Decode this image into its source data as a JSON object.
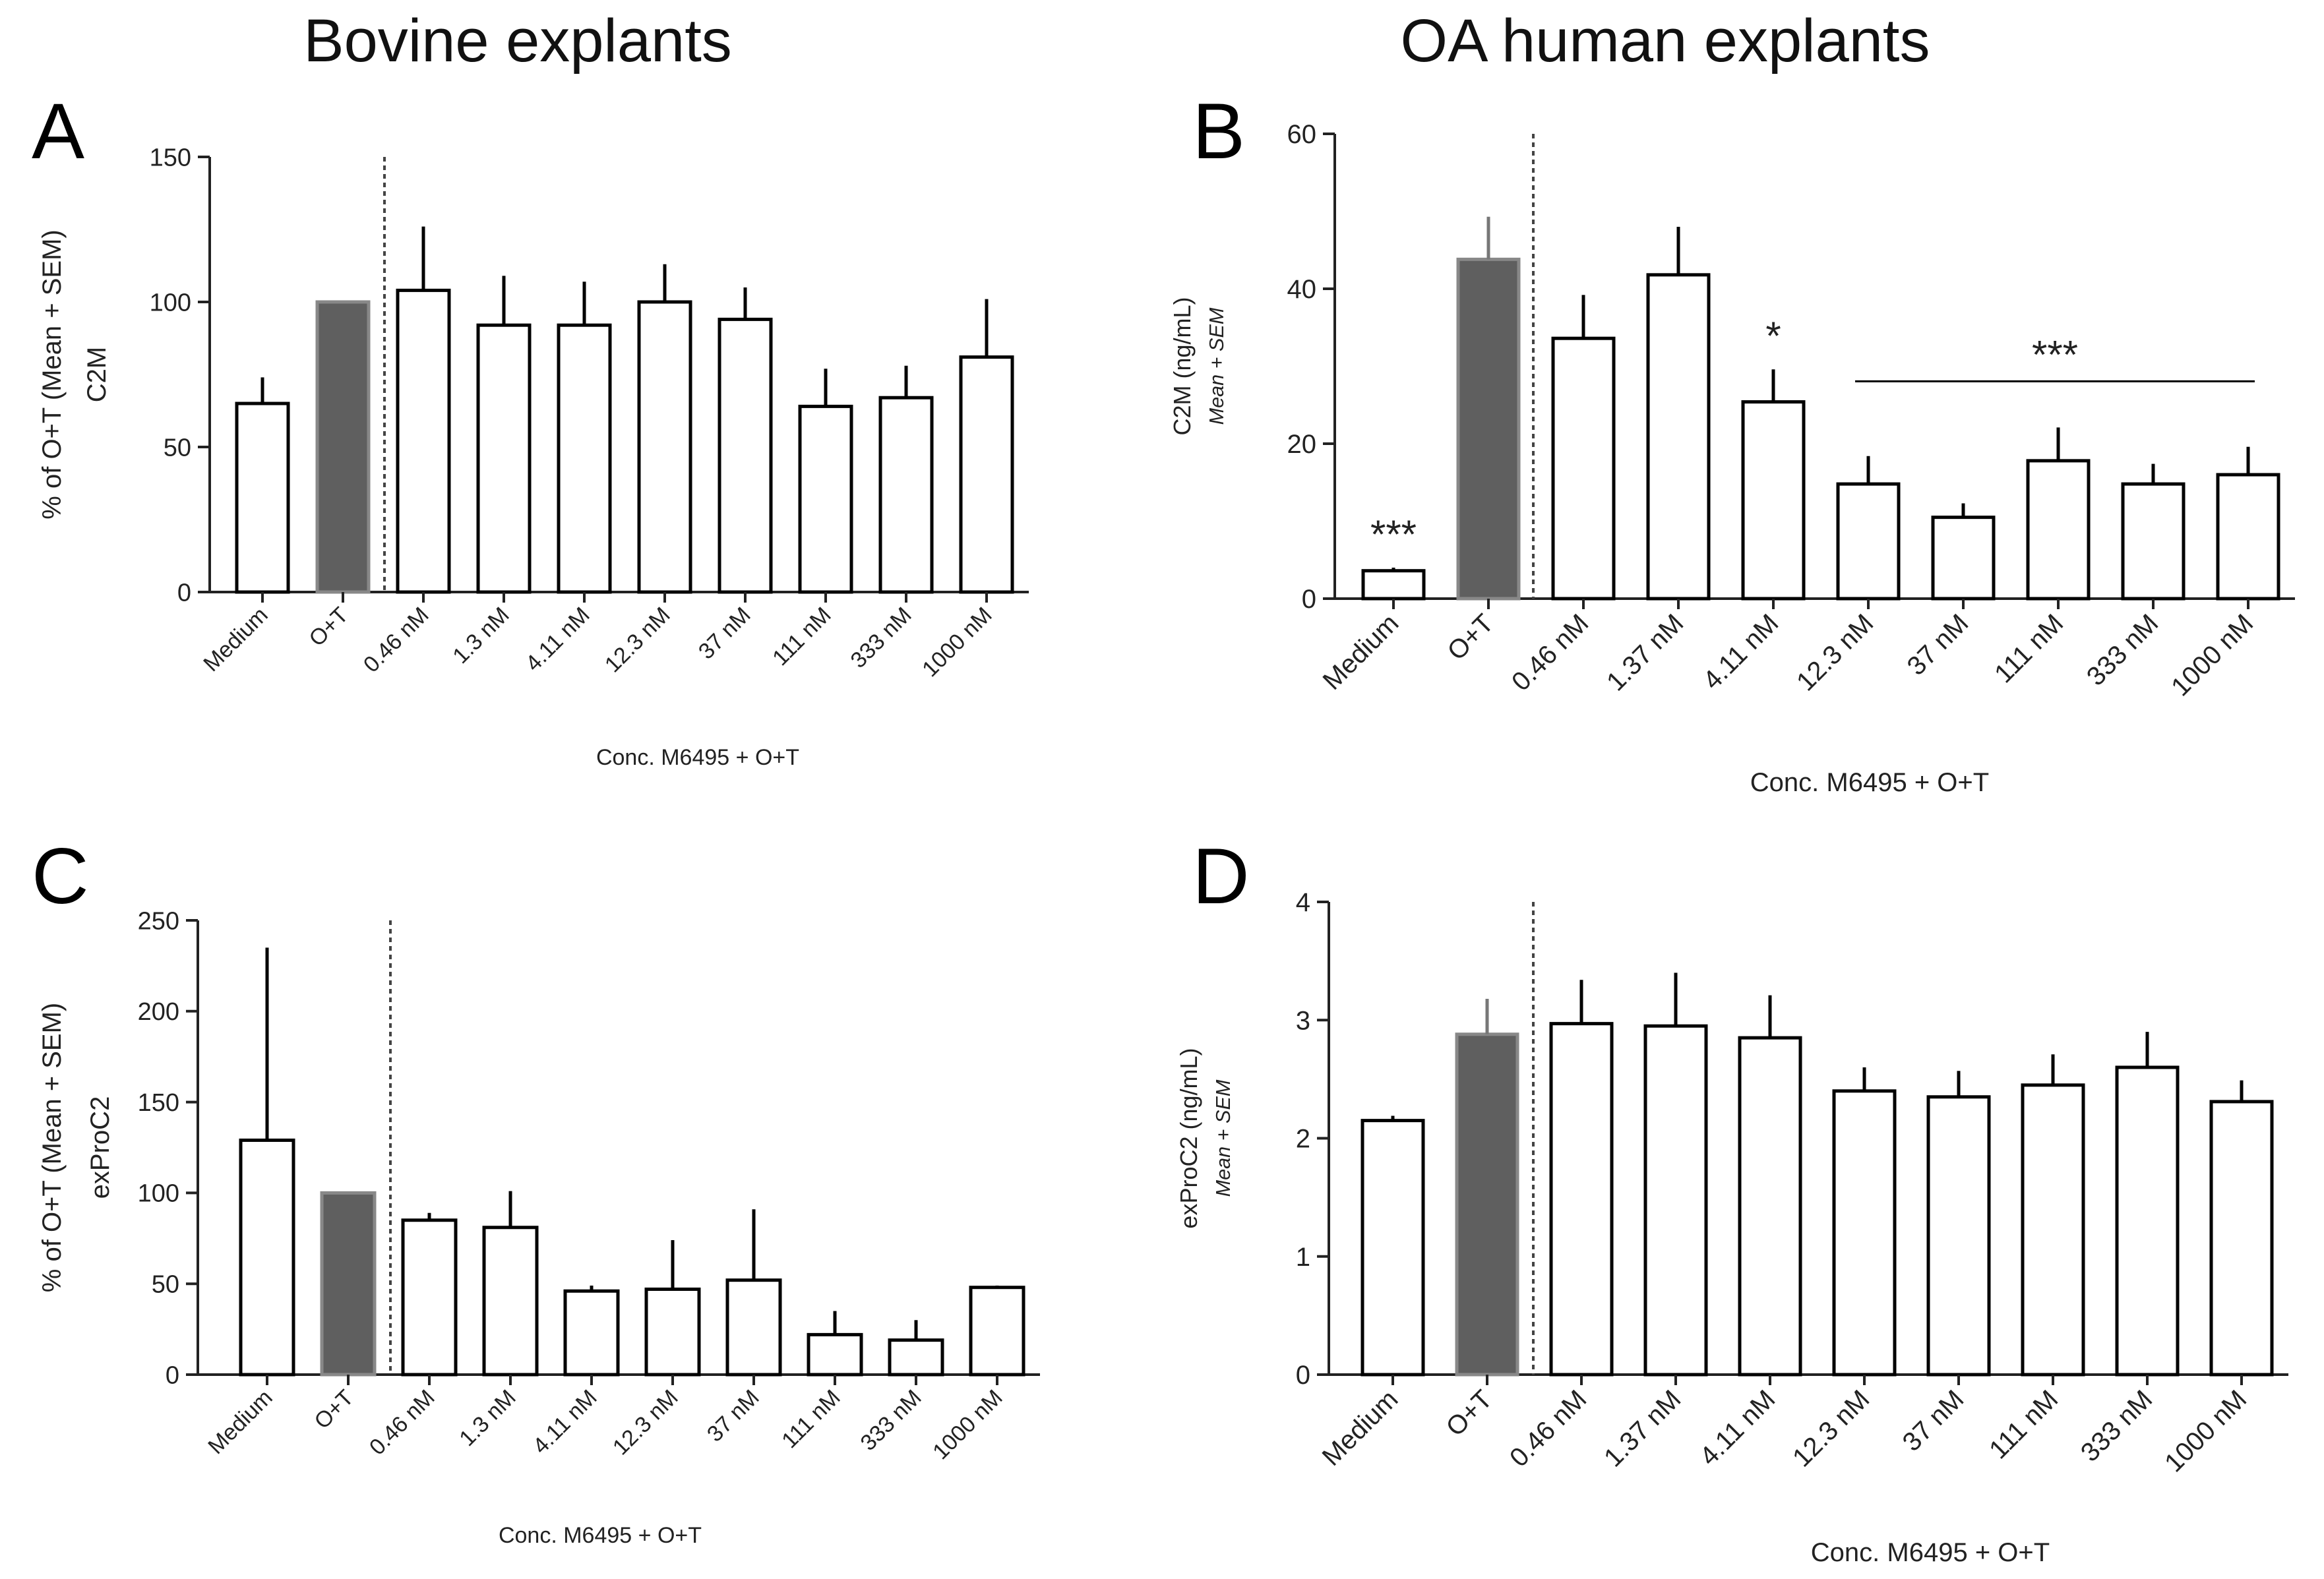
{
  "column_titles": {
    "left": "Bovine explants",
    "right": "OA human explants"
  },
  "colors": {
    "highlight_bar": "#5f5f5f",
    "bar_fill": "#ffffff",
    "axis": "#222222"
  },
  "chart_data": [
    {
      "panel": "A",
      "type": "bar",
      "title": "",
      "ylabel": [
        "% of O+T (Mean + SEM)",
        "C2M"
      ],
      "xlabel": "Conc. M6495 + O+T",
      "categories": [
        "Medium",
        "O+T",
        "0.46 nM",
        "1.3 nM",
        "4.11 nM",
        "12.3 nM",
        "37 nM",
        "111 nM",
        "333 nM",
        "1000 nM"
      ],
      "values": [
        65,
        100,
        104,
        92,
        92,
        100,
        94,
        64,
        67,
        81
      ],
      "errors": [
        9,
        0,
        22,
        17,
        15,
        13,
        11,
        13,
        11,
        20
      ],
      "highlight_index": 1,
      "ylim": [
        0,
        150
      ],
      "yticks": [
        0,
        50,
        100,
        150
      ],
      "significance": []
    },
    {
      "panel": "B",
      "type": "bar",
      "title": "",
      "ylabel": [
        "C2M (ng/mL)",
        "Mean + SEM"
      ],
      "xlabel": "Conc. M6495 + O+T",
      "categories": [
        "Medium",
        "O+T",
        "0.46 nM",
        "1.37 nM",
        "4.11 nM",
        "12.3 nM",
        "37 nM",
        "111 nM",
        "333 nM",
        "1000 nM"
      ],
      "values": [
        3.6,
        43.8,
        33.6,
        41.8,
        25.4,
        14.8,
        10.5,
        17.8,
        14.8,
        16
      ],
      "errors": [
        0.4,
        5.5,
        5.6,
        6.2,
        4.2,
        3.6,
        1.8,
        4.3,
        2.6,
        3.6
      ],
      "highlight_index": 1,
      "ylim": [
        0,
        60
      ],
      "yticks": [
        0,
        20,
        40,
        60
      ],
      "significance": [
        {
          "label": "***",
          "index": 0
        },
        {
          "label": "*",
          "index": 4
        },
        {
          "label": "***",
          "from": 5,
          "to": 9
        }
      ]
    },
    {
      "panel": "C",
      "type": "bar",
      "title": "",
      "ylabel": [
        "% of O+T (Mean + SEM)",
        "exProC2"
      ],
      "xlabel": "Conc. M6495 +  O+T",
      "categories": [
        "Medium",
        "O+T",
        "0.46 nM",
        "1.3 nM",
        "4.11 nM",
        "12.3 nM",
        "37 nM",
        "111 nM",
        "333 nM",
        "1000 nM"
      ],
      "values": [
        129,
        100,
        85,
        81,
        46,
        47,
        52,
        22,
        19,
        48
      ],
      "errors": [
        106,
        0,
        4,
        20,
        3,
        27,
        39,
        13,
        11,
        1
      ],
      "highlight_index": 1,
      "ylim": [
        0,
        250
      ],
      "yticks": [
        0,
        50,
        100,
        150,
        200,
        250
      ],
      "significance": []
    },
    {
      "panel": "D",
      "type": "bar",
      "title": "",
      "ylabel": [
        "exProC2 (ng/mL)",
        "Mean + SEM"
      ],
      "xlabel": "Conc. M6495 + O+T",
      "categories": [
        "Medium",
        "O+T",
        "0.46 nM",
        "1.37 nM",
        "4.11 nM",
        "12.3 nM",
        "37 nM",
        "111 nM",
        "333 nM",
        "1000 nM"
      ],
      "values": [
        2.15,
        2.88,
        2.97,
        2.95,
        2.85,
        2.4,
        2.35,
        2.45,
        2.6,
        2.31
      ],
      "errors": [
        0.04,
        0.3,
        0.37,
        0.45,
        0.36,
        0.2,
        0.22,
        0.26,
        0.3,
        0.18
      ],
      "highlight_index": 1,
      "ylim": [
        0,
        4
      ],
      "yticks": [
        0,
        1,
        2,
        3,
        4
      ],
      "significance": []
    }
  ]
}
